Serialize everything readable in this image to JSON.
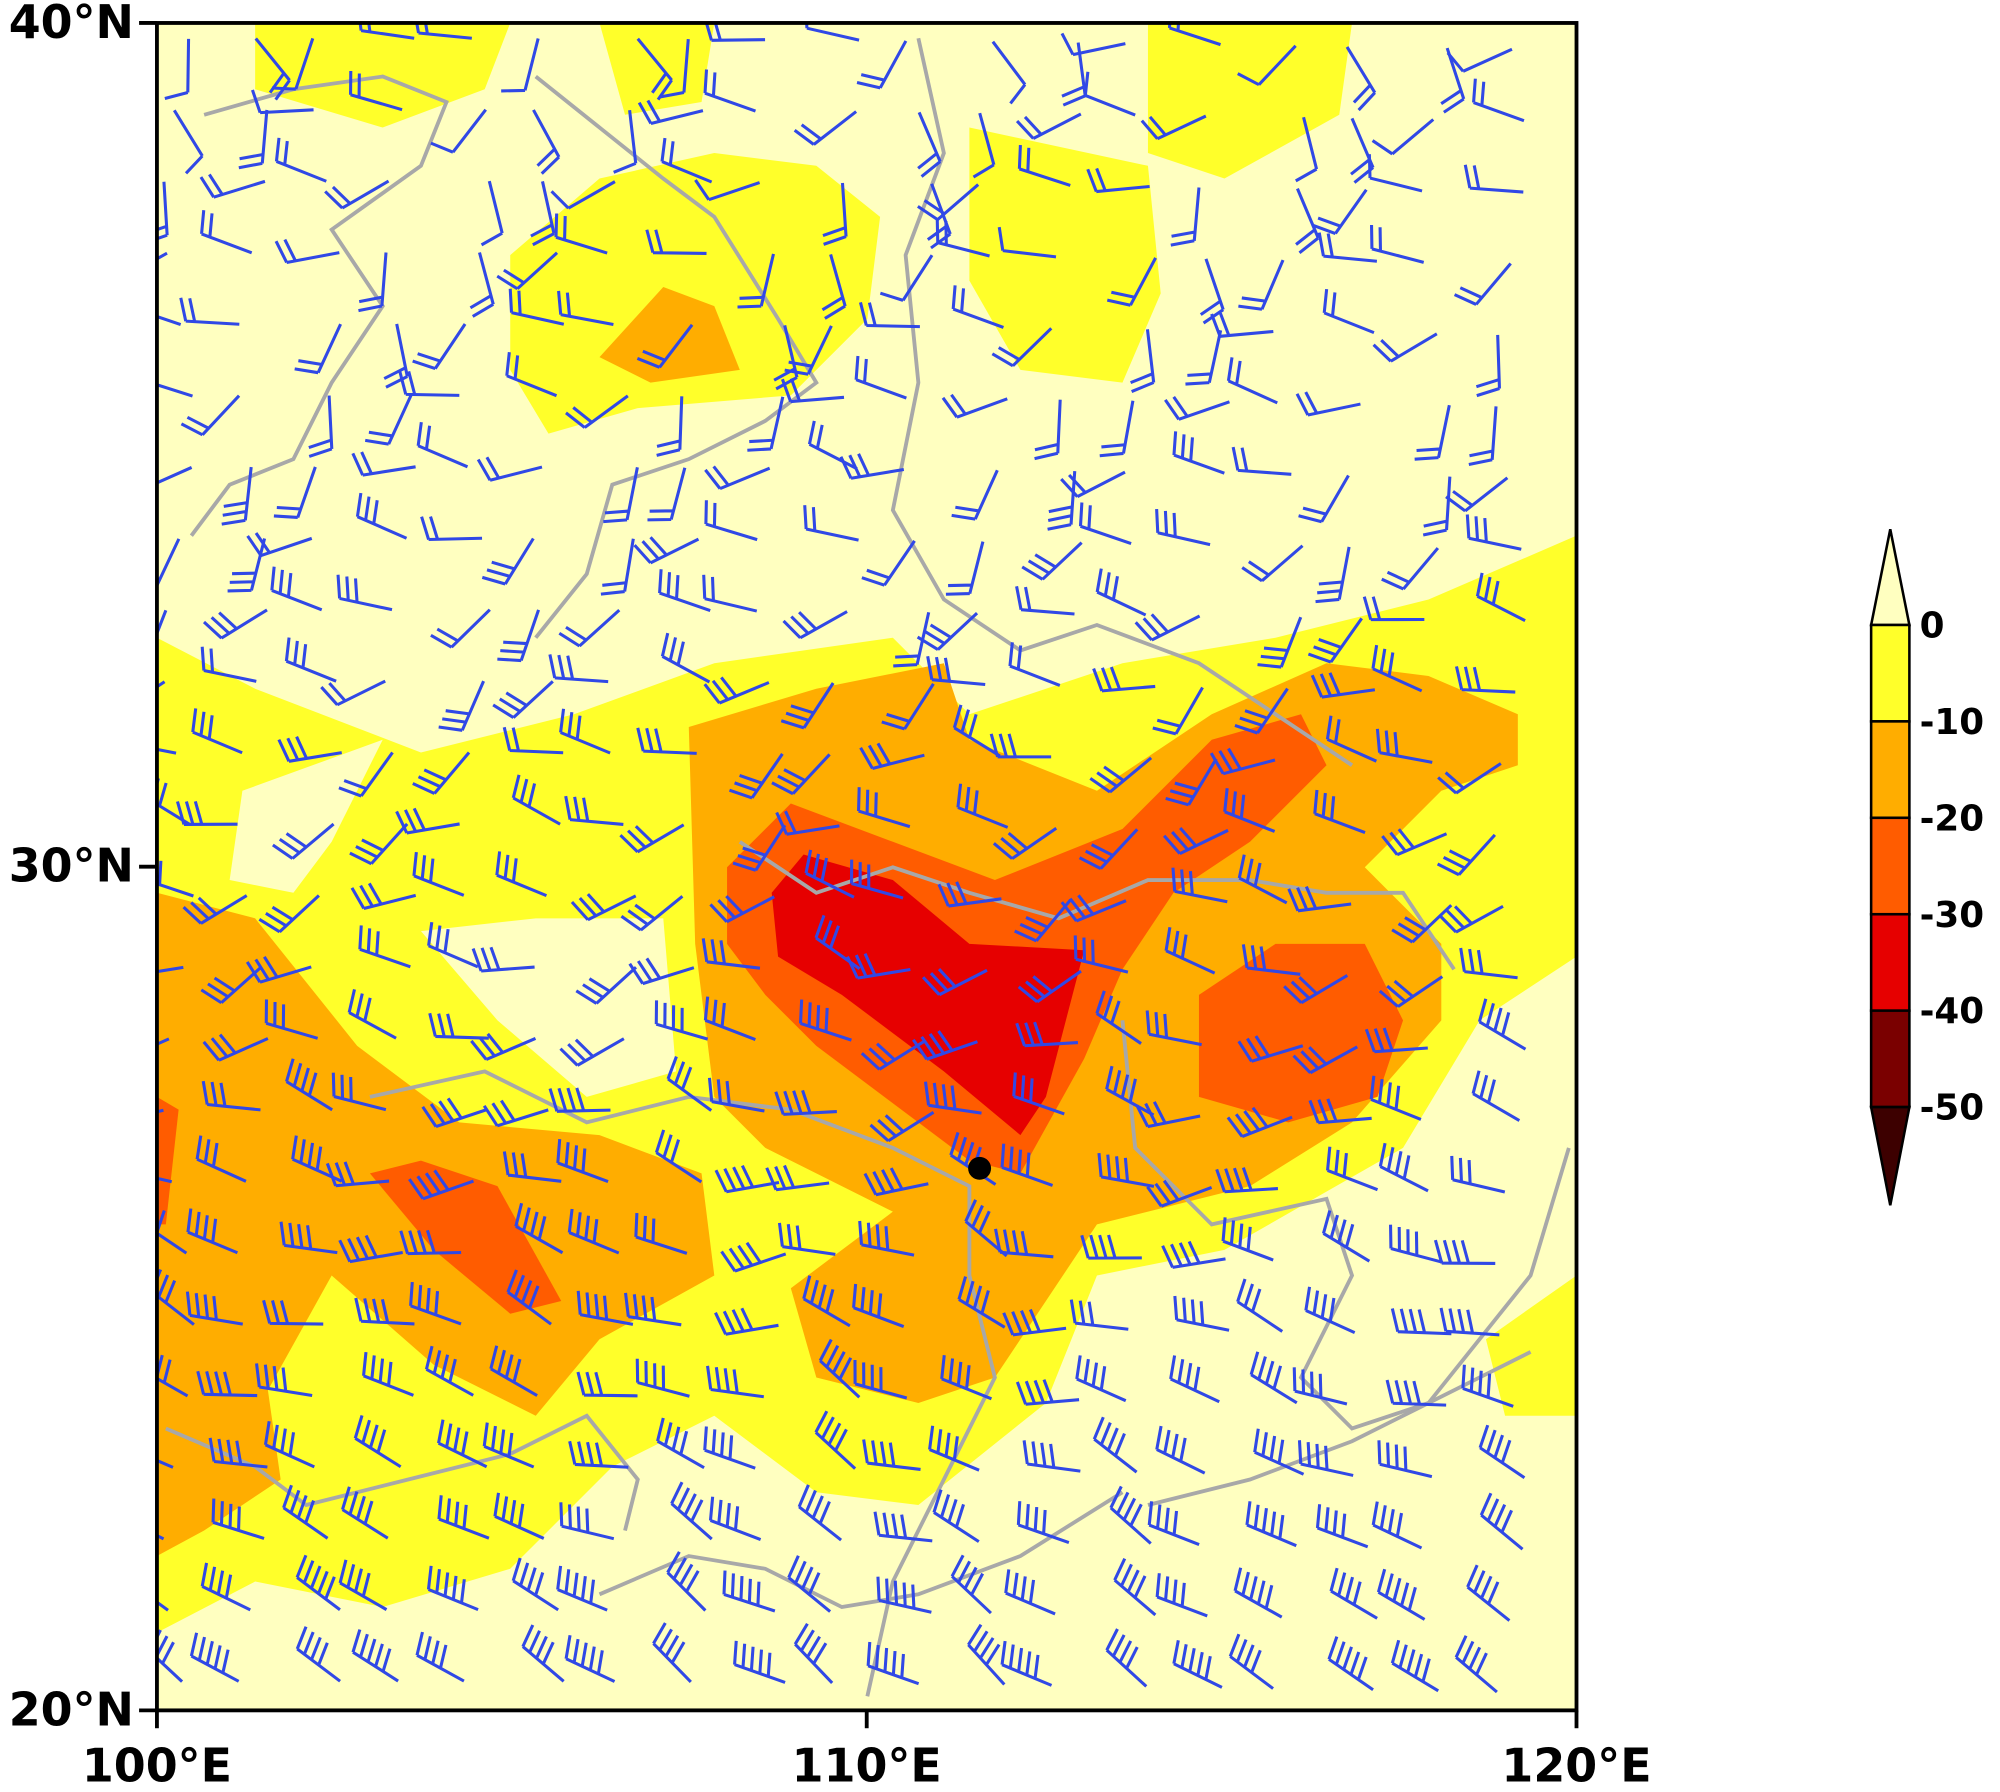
{
  "map": {
    "lat_axis": {
      "lim": [
        20,
        40
      ],
      "ticks": [
        {
          "value": 40,
          "label": "40°N"
        },
        {
          "value": 30,
          "label": "30°N"
        },
        {
          "value": 20,
          "label": "20°N"
        }
      ]
    },
    "lon_axis": {
      "lim": [
        100,
        120
      ],
      "ticks": [
        {
          "value": 100,
          "label": "100°E"
        },
        {
          "value": 110,
          "label": "110°E"
        },
        {
          "value": 120,
          "label": "120°E"
        }
      ]
    }
  },
  "colorbar": {
    "levels": [
      0,
      -10,
      -20,
      -30,
      -40,
      -50
    ],
    "colors": [
      "#ffffc0",
      "#ffff2a",
      "#ffad00",
      "#ff5c00",
      "#e60000",
      "#7a0000",
      "#3d0000"
    ]
  }
}
